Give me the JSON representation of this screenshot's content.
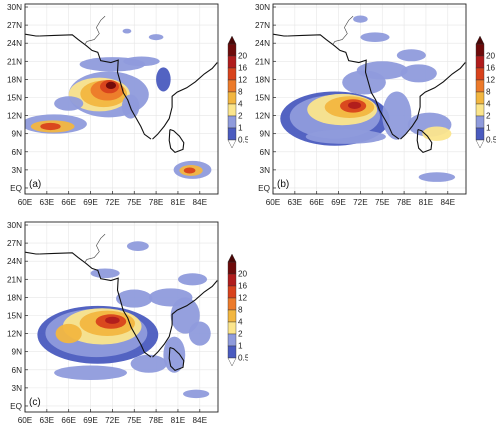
{
  "panels": [
    {
      "id": "a",
      "label": "(a)"
    },
    {
      "id": "b",
      "label": "(b)"
    },
    {
      "id": "c",
      "label": "(c)"
    }
  ],
  "lat_labels": [
    "30N",
    "27N",
    "24N",
    "21N",
    "18N",
    "15N",
    "12N",
    "9N",
    "6N",
    "3N",
    "EQ"
  ],
  "lon_labels": [
    "60E",
    "63E",
    "66E",
    "69E",
    "72E",
    "75E",
    "78E",
    "81E",
    "84E"
  ],
  "colorbar": {
    "levels": [
      "20",
      "16",
      "12",
      "8",
      "4",
      "2",
      "1",
      "0.5"
    ],
    "colors": [
      "#6e0a0a",
      "#b01c1c",
      "#d8421c",
      "#ec7a2a",
      "#f2b640",
      "#fbe58c",
      "#8f9bdc",
      "#4a5bbf"
    ]
  }
}
